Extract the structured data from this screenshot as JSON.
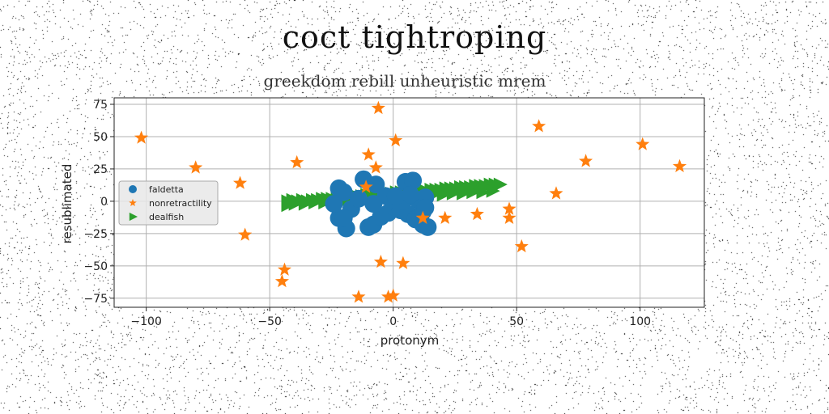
{
  "chart_data": {
    "type": "scatter",
    "title": "coct tightroping",
    "subtitle": "greekdom rebill unheuristic mrem",
    "xlabel": "protonym",
    "ylabel": "resublimated",
    "xlim": [
      -113,
      126
    ],
    "ylim": [
      -82,
      80
    ],
    "xticks": [
      -100,
      -50,
      0,
      50,
      100
    ],
    "yticks": [
      -75,
      -50,
      -25,
      0,
      25,
      50,
      75
    ],
    "grid": true,
    "legend_position": "center-left",
    "series": [
      {
        "name": "faldetta",
        "marker": "circle",
        "color": "#1f77b4",
        "points": [
          [
            -22,
            10
          ],
          [
            -20,
            7
          ],
          [
            -12,
            17
          ],
          [
            -7,
            13
          ],
          [
            -3,
            4
          ],
          [
            -17,
            -6
          ],
          [
            -22,
            -13
          ],
          [
            -19,
            -21
          ],
          [
            -20,
            -13
          ],
          [
            -10,
            -20
          ],
          [
            -8,
            -18
          ],
          [
            -5,
            -12
          ],
          [
            -2,
            -9
          ],
          [
            0,
            -4
          ],
          [
            3,
            -7
          ],
          [
            5,
            15
          ],
          [
            8,
            16
          ],
          [
            10,
            1
          ],
          [
            13,
            3
          ],
          [
            6,
            -10
          ],
          [
            9,
            -14
          ],
          [
            12,
            -8
          ],
          [
            14,
            -20
          ],
          [
            12,
            -18
          ],
          [
            4,
            0
          ],
          [
            1,
            4
          ],
          [
            -8,
            -2
          ],
          [
            -14,
            2
          ],
          [
            -24,
            -2
          ],
          [
            7,
            5
          ],
          [
            13,
            -5
          ]
        ]
      },
      {
        "name": "nonretractility",
        "marker": "star",
        "color": "#ff7f0e",
        "points": [
          [
            -102,
            49
          ],
          [
            -80,
            26
          ],
          [
            -62,
            14
          ],
          [
            -60,
            -26
          ],
          [
            -39,
            30
          ],
          [
            -44,
            -53
          ],
          [
            -45,
            -62
          ],
          [
            -6,
            72
          ],
          [
            1,
            47
          ],
          [
            -10,
            36
          ],
          [
            -7,
            26
          ],
          [
            -11,
            11
          ],
          [
            -14,
            -74
          ],
          [
            -5,
            -47
          ],
          [
            -2,
            -74
          ],
          [
            0,
            -73
          ],
          [
            4,
            -48
          ],
          [
            12,
            -13
          ],
          [
            21,
            -13
          ],
          [
            34,
            -10
          ],
          [
            47,
            -6
          ],
          [
            47,
            -13
          ],
          [
            52,
            -35
          ],
          [
            59,
            58
          ],
          [
            66,
            6
          ],
          [
            78,
            31
          ],
          [
            101,
            44
          ],
          [
            116,
            27
          ]
        ]
      },
      {
        "name": "dealfish",
        "marker": "triangle-right",
        "color": "#2ca02c",
        "points": [
          [
            -43,
            0
          ],
          [
            -41,
            1
          ],
          [
            -39,
            0
          ],
          [
            -37,
            1
          ],
          [
            -35,
            0
          ],
          [
            -33,
            1
          ],
          [
            -31,
            1
          ],
          [
            -29,
            2
          ],
          [
            -27,
            2
          ],
          [
            -25,
            2
          ],
          [
            -23,
            3
          ],
          [
            -21,
            3
          ],
          [
            -19,
            3
          ],
          [
            -17,
            4
          ],
          [
            -15,
            4
          ],
          [
            -13,
            4
          ],
          [
            -11,
            5
          ],
          [
            -9,
            5
          ],
          [
            -7,
            5
          ],
          [
            -5,
            6
          ],
          [
            -3,
            6
          ],
          [
            -1,
            6
          ],
          [
            1,
            7
          ],
          [
            3,
            7
          ],
          [
            5,
            7
          ],
          [
            7,
            8
          ],
          [
            9,
            8
          ],
          [
            11,
            8
          ],
          [
            13,
            8
          ],
          [
            15,
            9
          ],
          [
            17,
            9
          ],
          [
            19,
            9
          ],
          [
            21,
            10
          ],
          [
            23,
            10
          ],
          [
            25,
            10
          ],
          [
            27,
            11
          ],
          [
            29,
            11
          ],
          [
            31,
            11
          ],
          [
            33,
            12
          ],
          [
            35,
            12
          ],
          [
            37,
            12
          ],
          [
            39,
            13
          ],
          [
            41,
            13
          ],
          [
            43,
            13
          ],
          [
            -43,
            -3
          ],
          [
            -40,
            -2
          ],
          [
            -36,
            -2
          ],
          [
            -32,
            -1
          ],
          [
            -28,
            -1
          ],
          [
            -24,
            0
          ],
          [
            -20,
            0
          ],
          [
            -16,
            1
          ],
          [
            -12,
            1
          ],
          [
            -8,
            2
          ],
          [
            -4,
            2
          ],
          [
            0,
            3
          ],
          [
            4,
            3
          ],
          [
            8,
            4
          ],
          [
            12,
            4
          ],
          [
            16,
            5
          ],
          [
            20,
            5
          ],
          [
            24,
            6
          ],
          [
            28,
            6
          ],
          [
            32,
            7
          ],
          [
            36,
            7
          ],
          [
            40,
            8
          ]
        ]
      }
    ]
  }
}
